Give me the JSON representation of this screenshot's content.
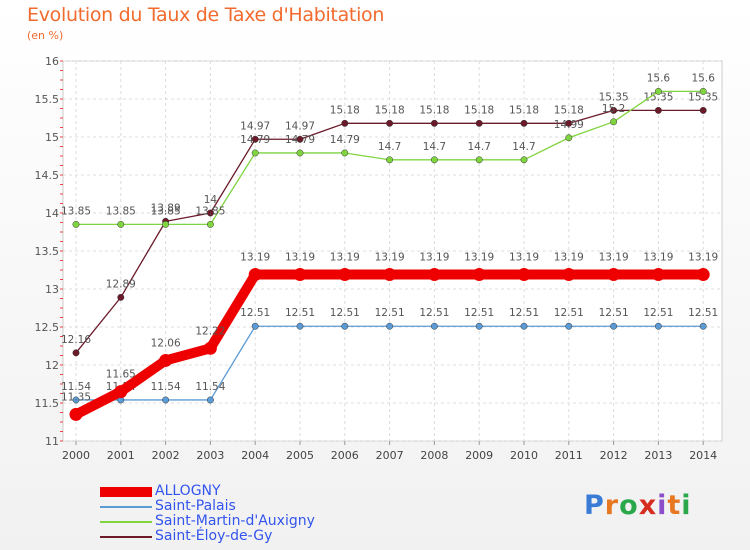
{
  "chart_data": {
    "type": "line",
    "title": "Evolution du Taux de Taxe d'Habitation",
    "subtitle": "(en %)",
    "x": [
      "2000",
      "2001",
      "2002",
      "2003",
      "2004",
      "2005",
      "2006",
      "2007",
      "2008",
      "2009",
      "2010",
      "2011",
      "2012",
      "2013",
      "2014"
    ],
    "ylim": [
      11,
      16
    ],
    "yticks": [
      "11",
      "11.5",
      "12",
      "12.5",
      "13",
      "13.5",
      "14",
      "14.5",
      "15",
      "15.5",
      "16"
    ],
    "grid": true,
    "legend_position": "bottom-left",
    "series": [
      {
        "name": "ALLOGNY",
        "color": "#ee0000",
        "values": [
          11.35,
          11.65,
          12.06,
          12.22,
          13.19,
          13.19,
          13.19,
          13.19,
          13.19,
          13.19,
          13.19,
          13.19,
          13.19,
          13.19,
          13.19
        ],
        "labels": [
          "11.35",
          "11.65",
          "12.06",
          "12.22",
          "13.19",
          "13.19",
          "13.19",
          "13.19",
          "13.19",
          "13.19",
          "13.19",
          "13.19",
          "13.19",
          "13.19",
          "13.19"
        ]
      },
      {
        "name": "Saint-Palais",
        "color": "#5b9bd5",
        "values": [
          11.54,
          11.54,
          11.54,
          11.54,
          12.51,
          12.51,
          12.51,
          12.51,
          12.51,
          12.51,
          12.51,
          12.51,
          12.51,
          12.51,
          12.51
        ],
        "labels": [
          "11.54",
          "11.54",
          "11.54",
          "11.54",
          "12.51",
          "12.51",
          "12.51",
          "12.51",
          "12.51",
          "12.51",
          "12.51",
          "12.51",
          "12.51",
          "12.51",
          "12.51"
        ]
      },
      {
        "name": "Saint-Martin-d'Auxigny",
        "color": "#7fd43f",
        "values": [
          13.85,
          13.85,
          13.85,
          13.85,
          14.79,
          14.79,
          14.79,
          14.7,
          14.7,
          14.7,
          14.7,
          14.99,
          15.2,
          15.6,
          15.6
        ],
        "labels": [
          "13.85",
          "13.85",
          "13.85",
          "13.85",
          "14.79",
          "14.79",
          "14.79",
          "14.7",
          "14.7",
          "14.7",
          "14.7",
          "14.99",
          "15.2",
          "15.6",
          "15.6"
        ]
      },
      {
        "name": "Saint-Éloy-de-Gy",
        "color": "#6b1a2a",
        "values": [
          12.16,
          12.89,
          13.89,
          14,
          14.97,
          14.97,
          15.18,
          15.18,
          15.18,
          15.18,
          15.18,
          15.18,
          15.35,
          15.35,
          15.35
        ],
        "labels": [
          "12.16",
          "12.89",
          "13.89",
          "14",
          "14.97",
          "14.97",
          "15.18",
          "15.18",
          "15.18",
          "15.18",
          "15.18",
          "15.18",
          "15.35",
          "15.35",
          "15.35"
        ]
      }
    ]
  },
  "logo": {
    "text": "Proxiti"
  }
}
